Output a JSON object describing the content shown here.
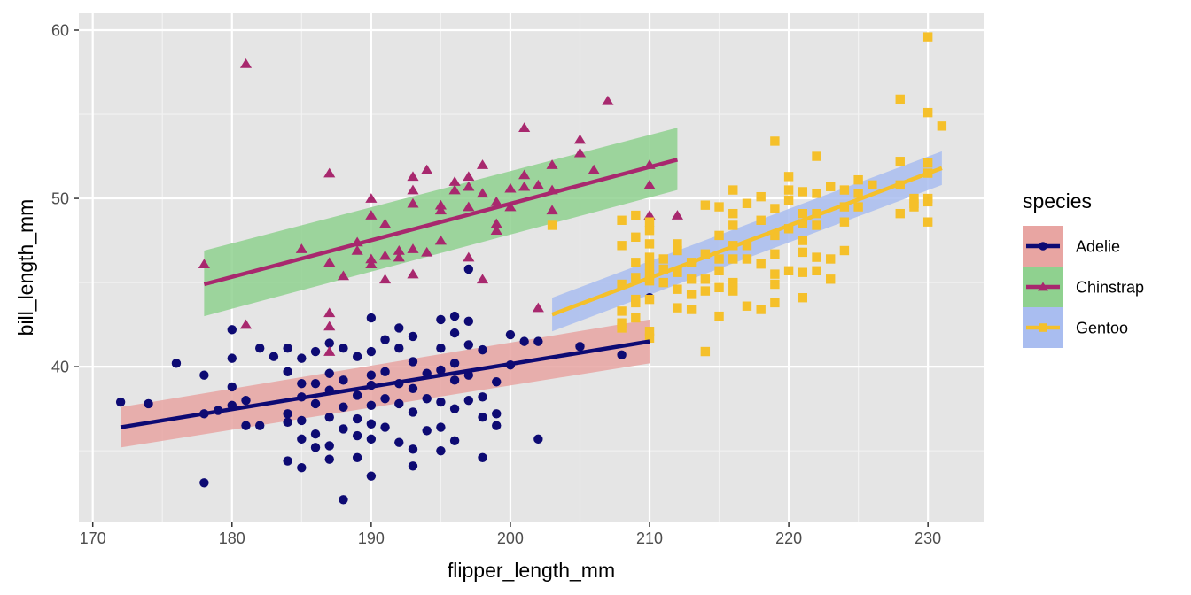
{
  "chart_data": {
    "type": "scatter",
    "xlabel": "flipper_length_mm",
    "ylabel": "bill_length_mm",
    "xlim": [
      169,
      234
    ],
    "ylim": [
      30.8,
      61
    ],
    "x_ticks": [
      170,
      180,
      190,
      200,
      210,
      220,
      230
    ],
    "y_ticks": [
      40,
      50,
      60
    ],
    "grid": true,
    "legend": {
      "title": "species",
      "position": "right"
    },
    "series": [
      {
        "name": "Adelie",
        "color": "#0d0a73",
        "band_color": "#e8a5a2",
        "marker": "circle",
        "trend": {
          "x": [
            172,
            210
          ],
          "y": [
            36.4,
            41.5
          ],
          "lower": [
            35.2,
            40.2
          ],
          "upper": [
            37.6,
            42.8
          ]
        },
        "points": [
          [
            172,
            37.9
          ],
          [
            174,
            37.8
          ],
          [
            176,
            40.2
          ],
          [
            178,
            39.5
          ],
          [
            178,
            37.2
          ],
          [
            178,
            33.1
          ],
          [
            179,
            37.4
          ],
          [
            180,
            42.2
          ],
          [
            180,
            40.5
          ],
          [
            180,
            38.8
          ],
          [
            180,
            37.7
          ],
          [
            181,
            38.0
          ],
          [
            181,
            36.5
          ],
          [
            182,
            41.1
          ],
          [
            182,
            36.5
          ],
          [
            183,
            40.6
          ],
          [
            184,
            41.1
          ],
          [
            184,
            39.7
          ],
          [
            184,
            37.2
          ],
          [
            184,
            36.7
          ],
          [
            184,
            34.4
          ],
          [
            185,
            40.5
          ],
          [
            185,
            39.0
          ],
          [
            185,
            38.2
          ],
          [
            185,
            36.8
          ],
          [
            185,
            35.7
          ],
          [
            185,
            34.0
          ],
          [
            186,
            40.9
          ],
          [
            186,
            39.0
          ],
          [
            186,
            37.8
          ],
          [
            186,
            36.0
          ],
          [
            186,
            35.2
          ],
          [
            187,
            41.4
          ],
          [
            187,
            39.6
          ],
          [
            187,
            38.6
          ],
          [
            187,
            37.0
          ],
          [
            187,
            35.3
          ],
          [
            187,
            34.5
          ],
          [
            188,
            41.1
          ],
          [
            188,
            39.2
          ],
          [
            188,
            37.6
          ],
          [
            188,
            36.3
          ],
          [
            188,
            32.1
          ],
          [
            189,
            40.6
          ],
          [
            189,
            38.3
          ],
          [
            189,
            36.9
          ],
          [
            189,
            35.9
          ],
          [
            189,
            34.6
          ],
          [
            190,
            42.9
          ],
          [
            190,
            40.9
          ],
          [
            190,
            39.5
          ],
          [
            190,
            38.9
          ],
          [
            190,
            37.7
          ],
          [
            190,
            36.6
          ],
          [
            190,
            35.7
          ],
          [
            190,
            33.5
          ],
          [
            191,
            41.6
          ],
          [
            191,
            39.7
          ],
          [
            191,
            38.1
          ],
          [
            191,
            36.4
          ],
          [
            192,
            42.3
          ],
          [
            192,
            41.1
          ],
          [
            192,
            39.0
          ],
          [
            192,
            37.8
          ],
          [
            192,
            35.5
          ],
          [
            193,
            41.8
          ],
          [
            193,
            40.3
          ],
          [
            193,
            38.7
          ],
          [
            193,
            37.3
          ],
          [
            193,
            35.1
          ],
          [
            193,
            34.1
          ],
          [
            194,
            39.6
          ],
          [
            194,
            38.1
          ],
          [
            194,
            36.2
          ],
          [
            195,
            42.8
          ],
          [
            195,
            41.1
          ],
          [
            195,
            39.8
          ],
          [
            195,
            37.9
          ],
          [
            195,
            36.4
          ],
          [
            195,
            35.0
          ],
          [
            196,
            43.0
          ],
          [
            196,
            42.0
          ],
          [
            196,
            40.2
          ],
          [
            196,
            39.2
          ],
          [
            196,
            37.5
          ],
          [
            196,
            35.6
          ],
          [
            197,
            45.8
          ],
          [
            197,
            42.7
          ],
          [
            197,
            41.3
          ],
          [
            197,
            39.5
          ],
          [
            197,
            38.0
          ],
          [
            198,
            41.0
          ],
          [
            198,
            38.2
          ],
          [
            198,
            37.0
          ],
          [
            198,
            34.6
          ],
          [
            199,
            39.1
          ],
          [
            199,
            37.2
          ],
          [
            199,
            36.5
          ],
          [
            200,
            41.9
          ],
          [
            200,
            40.1
          ],
          [
            201,
            41.5
          ],
          [
            202,
            41.5
          ],
          [
            202,
            35.7
          ],
          [
            205,
            41.2
          ],
          [
            208,
            40.7
          ],
          [
            210,
            44.1
          ]
        ]
      },
      {
        "name": "Chinstrap",
        "color": "#a8286e",
        "band_color": "#8fd18f",
        "marker": "triangle",
        "trend": {
          "x": [
            178,
            212
          ],
          "y": [
            44.9,
            52.3
          ],
          "lower": [
            43.0,
            50.5
          ],
          "upper": [
            46.9,
            54.2
          ]
        },
        "points": [
          [
            178,
            46.1
          ],
          [
            181,
            58.0
          ],
          [
            181,
            42.5
          ],
          [
            185,
            47.0
          ],
          [
            187,
            51.5
          ],
          [
            187,
            46.2
          ],
          [
            187,
            43.2
          ],
          [
            187,
            42.4
          ],
          [
            187,
            40.9
          ],
          [
            188,
            45.4
          ],
          [
            189,
            47.4
          ],
          [
            189,
            46.9
          ],
          [
            190,
            50.0
          ],
          [
            190,
            49.0
          ],
          [
            190,
            46.4
          ],
          [
            190,
            46.1
          ],
          [
            191,
            48.5
          ],
          [
            191,
            46.6
          ],
          [
            191,
            45.2
          ],
          [
            192,
            46.9
          ],
          [
            192,
            46.5
          ],
          [
            193,
            51.3
          ],
          [
            193,
            50.5
          ],
          [
            193,
            49.7
          ],
          [
            193,
            47.0
          ],
          [
            193,
            45.5
          ],
          [
            194,
            51.7
          ],
          [
            194,
            46.8
          ],
          [
            195,
            49.6
          ],
          [
            195,
            49.3
          ],
          [
            195,
            47.5
          ],
          [
            196,
            51.0
          ],
          [
            196,
            50.5
          ],
          [
            197,
            51.3
          ],
          [
            197,
            50.7
          ],
          [
            197,
            49.5
          ],
          [
            197,
            46.5
          ],
          [
            198,
            52.0
          ],
          [
            198,
            50.3
          ],
          [
            198,
            45.2
          ],
          [
            199,
            49.8
          ],
          [
            199,
            48.5
          ],
          [
            199,
            48.1
          ],
          [
            200,
            50.6
          ],
          [
            200,
            49.5
          ],
          [
            201,
            54.2
          ],
          [
            201,
            51.4
          ],
          [
            201,
            50.7
          ],
          [
            202,
            50.8
          ],
          [
            202,
            43.5
          ],
          [
            203,
            52.0
          ],
          [
            203,
            50.5
          ],
          [
            203,
            49.3
          ],
          [
            205,
            53.5
          ],
          [
            205,
            52.7
          ],
          [
            206,
            51.7
          ],
          [
            207,
            55.8
          ],
          [
            210,
            52.0
          ],
          [
            210,
            50.8
          ],
          [
            210,
            49.0
          ],
          [
            212,
            49.0
          ]
        ]
      },
      {
        "name": "Gentoo",
        "color": "#f5c02a",
        "band_color": "#a9bdf0",
        "marker": "square",
        "trend": {
          "x": [
            203,
            231
          ],
          "y": [
            43.1,
            51.8
          ],
          "lower": [
            42.1,
            50.8
          ],
          "upper": [
            44.1,
            52.8
          ]
        },
        "points": [
          [
            203,
            48.4
          ],
          [
            208,
            48.7
          ],
          [
            208,
            47.2
          ],
          [
            208,
            44.9
          ],
          [
            208,
            43.3
          ],
          [
            208,
            42.6
          ],
          [
            208,
            42.3
          ],
          [
            209,
            49.0
          ],
          [
            209,
            47.7
          ],
          [
            209,
            46.2
          ],
          [
            209,
            45.3
          ],
          [
            209,
            44.0
          ],
          [
            209,
            43.8
          ],
          [
            209,
            42.9
          ],
          [
            210,
            48.6
          ],
          [
            210,
            48.1
          ],
          [
            210,
            47.3
          ],
          [
            210,
            46.5
          ],
          [
            210,
            46.0
          ],
          [
            210,
            45.5
          ],
          [
            210,
            45.1
          ],
          [
            210,
            44.0
          ],
          [
            210,
            42.1
          ],
          [
            210,
            41.7
          ],
          [
            211,
            46.4
          ],
          [
            211,
            45.8
          ],
          [
            211,
            45.0
          ],
          [
            212,
            47.3
          ],
          [
            212,
            46.9
          ],
          [
            212,
            45.6
          ],
          [
            212,
            44.6
          ],
          [
            212,
            43.5
          ],
          [
            213,
            46.2
          ],
          [
            213,
            45.2
          ],
          [
            213,
            44.3
          ],
          [
            213,
            43.4
          ],
          [
            214,
            49.6
          ],
          [
            214,
            46.7
          ],
          [
            214,
            45.2
          ],
          [
            214,
            44.5
          ],
          [
            214,
            40.9
          ],
          [
            215,
            49.5
          ],
          [
            215,
            47.8
          ],
          [
            215,
            46.4
          ],
          [
            215,
            45.7
          ],
          [
            215,
            44.7
          ],
          [
            215,
            43.0
          ],
          [
            216,
            50.5
          ],
          [
            216,
            49.1
          ],
          [
            216,
            48.4
          ],
          [
            216,
            47.2
          ],
          [
            216,
            46.4
          ],
          [
            216,
            45.0
          ],
          [
            216,
            44.5
          ],
          [
            217,
            49.7
          ],
          [
            217,
            47.2
          ],
          [
            217,
            46.4
          ],
          [
            217,
            43.6
          ],
          [
            218,
            50.1
          ],
          [
            218,
            48.7
          ],
          [
            218,
            46.1
          ],
          [
            218,
            43.4
          ],
          [
            219,
            53.4
          ],
          [
            219,
            49.4
          ],
          [
            219,
            47.8
          ],
          [
            219,
            46.7
          ],
          [
            219,
            45.5
          ],
          [
            219,
            44.9
          ],
          [
            219,
            43.8
          ],
          [
            220,
            51.3
          ],
          [
            220,
            50.5
          ],
          [
            220,
            49.9
          ],
          [
            220,
            48.2
          ],
          [
            220,
            45.7
          ],
          [
            221,
            50.4
          ],
          [
            221,
            49.1
          ],
          [
            221,
            48.5
          ],
          [
            221,
            47.5
          ],
          [
            221,
            46.8
          ],
          [
            221,
            45.6
          ],
          [
            221,
            44.1
          ],
          [
            222,
            52.5
          ],
          [
            222,
            50.3
          ],
          [
            222,
            49.1
          ],
          [
            222,
            48.4
          ],
          [
            222,
            46.5
          ],
          [
            222,
            45.7
          ],
          [
            223,
            50.7
          ],
          [
            223,
            46.4
          ],
          [
            223,
            45.2
          ],
          [
            224,
            50.5
          ],
          [
            224,
            49.5
          ],
          [
            224,
            48.6
          ],
          [
            224,
            46.9
          ],
          [
            225,
            51.1
          ],
          [
            225,
            50.3
          ],
          [
            225,
            49.5
          ],
          [
            226,
            50.8
          ],
          [
            228,
            55.9
          ],
          [
            228,
            52.2
          ],
          [
            228,
            50.8
          ],
          [
            228,
            49.1
          ],
          [
            229,
            49.5
          ],
          [
            229,
            50.0
          ],
          [
            229,
            49.7
          ],
          [
            230,
            59.6
          ],
          [
            230,
            55.1
          ],
          [
            230,
            52.1
          ],
          [
            230,
            51.5
          ],
          [
            230,
            50.0
          ],
          [
            230,
            49.8
          ],
          [
            230,
            48.6
          ],
          [
            231,
            54.3
          ]
        ]
      }
    ]
  }
}
